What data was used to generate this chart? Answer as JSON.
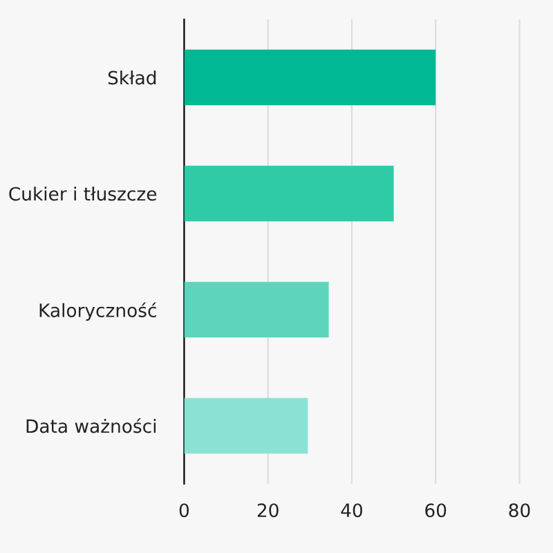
{
  "chart_data": {
    "type": "bar",
    "orientation": "horizontal",
    "categories": [
      "Skład",
      "Cukier i tłuszcze",
      "Kaloryczność",
      "Data ważności"
    ],
    "values": [
      60,
      50,
      34.5,
      29.5
    ],
    "colors": [
      "#00b894",
      "#2fcba7",
      "#5dd5bd",
      "#8ae3d2"
    ],
    "xlim": [
      0,
      88
    ],
    "xticks": [
      0,
      20,
      40,
      60,
      80
    ],
    "grid": "x"
  }
}
